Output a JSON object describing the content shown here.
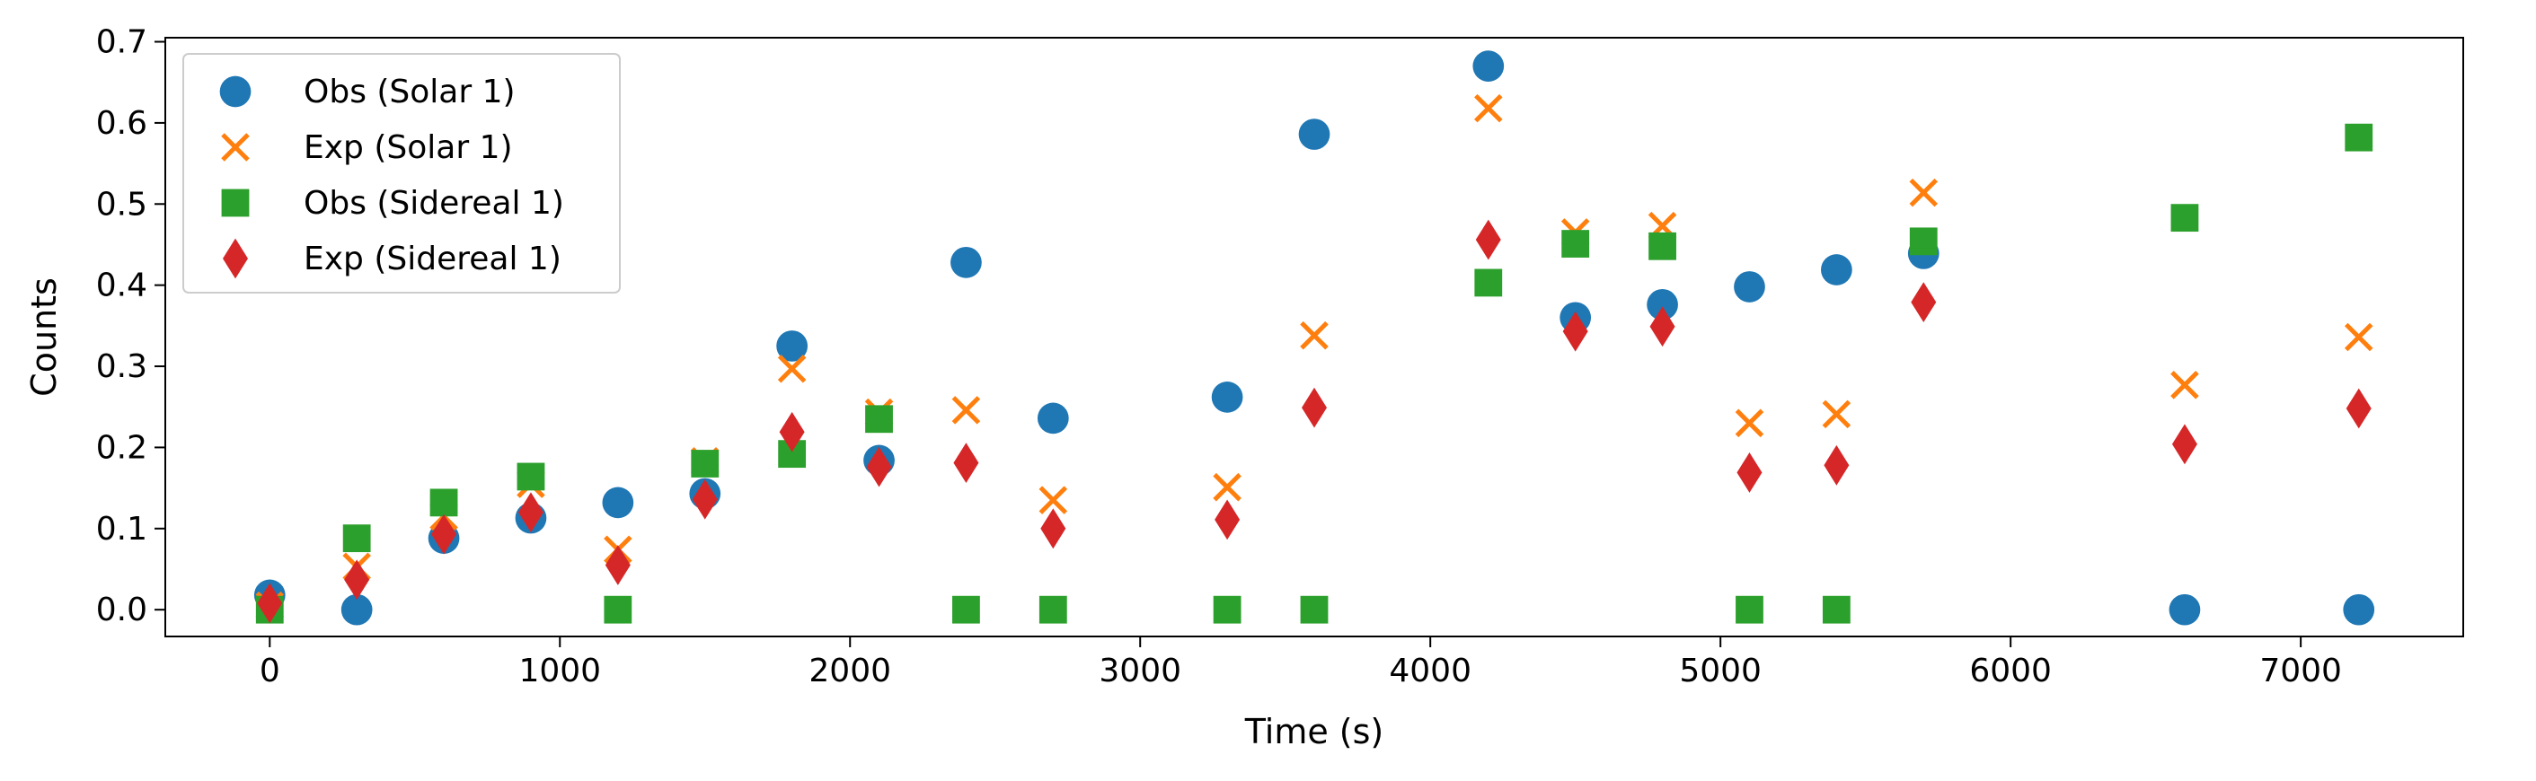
{
  "chart_data": {
    "type": "scatter",
    "title": "",
    "xlabel": "Time (s)",
    "ylabel": "Counts",
    "xlim": [
      -360,
      7560
    ],
    "ylim": [
      -0.033,
      0.705
    ],
    "xticks": [
      0,
      1000,
      2000,
      3000,
      4000,
      5000,
      6000,
      7000
    ],
    "yticks": [
      0.0,
      0.1,
      0.2,
      0.3,
      0.4,
      0.5,
      0.6,
      0.7
    ],
    "xtick_labels": [
      "0",
      "1000",
      "2000",
      "3000",
      "4000",
      "5000",
      "6000",
      "7000"
    ],
    "ytick_labels": [
      "0.0",
      "0.1",
      "0.2",
      "0.3",
      "0.4",
      "0.5",
      "0.6",
      "0.7"
    ],
    "grid": false,
    "legend_position": "top-left",
    "series": [
      {
        "name": "Obs (Solar 1)",
        "marker": "circle",
        "color": "#1f77b4",
        "points": [
          [
            0,
            0.018
          ],
          [
            300,
            0.0
          ],
          [
            600,
            0.088
          ],
          [
            900,
            0.113
          ],
          [
            1200,
            0.132
          ],
          [
            1500,
            0.143
          ],
          [
            1800,
            0.325
          ],
          [
            2100,
            0.184
          ],
          [
            2400,
            0.428
          ],
          [
            2700,
            0.236
          ],
          [
            3300,
            0.262
          ],
          [
            3600,
            0.586
          ],
          [
            4200,
            0.67
          ],
          [
            4500,
            0.36
          ],
          [
            4800,
            0.376
          ],
          [
            5100,
            0.398
          ],
          [
            5400,
            0.419
          ],
          [
            5700,
            0.439
          ],
          [
            6600,
            0.0
          ],
          [
            7200,
            0.0
          ]
        ]
      },
      {
        "name": "Exp (Solar 1)",
        "marker": "x",
        "color": "#ff7f0e",
        "points": [
          [
            0,
            0.005
          ],
          [
            300,
            0.053
          ],
          [
            600,
            0.115
          ],
          [
            900,
            0.155
          ],
          [
            1200,
            0.074
          ],
          [
            1500,
            0.183
          ],
          [
            1800,
            0.297
          ],
          [
            2100,
            0.243
          ],
          [
            2400,
            0.246
          ],
          [
            2700,
            0.135
          ],
          [
            3300,
            0.151
          ],
          [
            3600,
            0.338
          ],
          [
            4200,
            0.618
          ],
          [
            4500,
            0.465
          ],
          [
            4800,
            0.473
          ],
          [
            5100,
            0.23
          ],
          [
            5400,
            0.241
          ],
          [
            5700,
            0.514
          ],
          [
            6600,
            0.277
          ],
          [
            7200,
            0.336
          ]
        ]
      },
      {
        "name": "Obs (Sidereal 1)",
        "marker": "square",
        "color": "#2ca02c",
        "points": [
          [
            0,
            0.0
          ],
          [
            300,
            0.088
          ],
          [
            600,
            0.132
          ],
          [
            900,
            0.164
          ],
          [
            1200,
            0.0
          ],
          [
            1500,
            0.18
          ],
          [
            1800,
            0.192
          ],
          [
            2100,
            0.235
          ],
          [
            2400,
            0.0
          ],
          [
            2700,
            0.0
          ],
          [
            3300,
            0.0
          ],
          [
            3600,
            0.0
          ],
          [
            4200,
            0.403
          ],
          [
            4500,
            0.451
          ],
          [
            4800,
            0.448
          ],
          [
            5100,
            0.0
          ],
          [
            5400,
            0.0
          ],
          [
            5700,
            0.454
          ],
          [
            6600,
            0.483
          ],
          [
            7200,
            0.582
          ]
        ]
      },
      {
        "name": "Exp (Sidereal 1)",
        "marker": "diamond",
        "color": "#d62728",
        "points": [
          [
            0,
            0.008
          ],
          [
            300,
            0.037
          ],
          [
            600,
            0.093
          ],
          [
            900,
            0.12
          ],
          [
            1200,
            0.055
          ],
          [
            1500,
            0.136
          ],
          [
            1800,
            0.219
          ],
          [
            2100,
            0.176
          ],
          [
            2400,
            0.181
          ],
          [
            2700,
            0.1
          ],
          [
            3300,
            0.111
          ],
          [
            3600,
            0.249
          ],
          [
            4200,
            0.456
          ],
          [
            4500,
            0.343
          ],
          [
            4800,
            0.349
          ],
          [
            5100,
            0.169
          ],
          [
            5400,
            0.178
          ],
          [
            5700,
            0.379
          ],
          [
            6600,
            0.204
          ],
          [
            7200,
            0.248
          ]
        ]
      }
    ]
  }
}
